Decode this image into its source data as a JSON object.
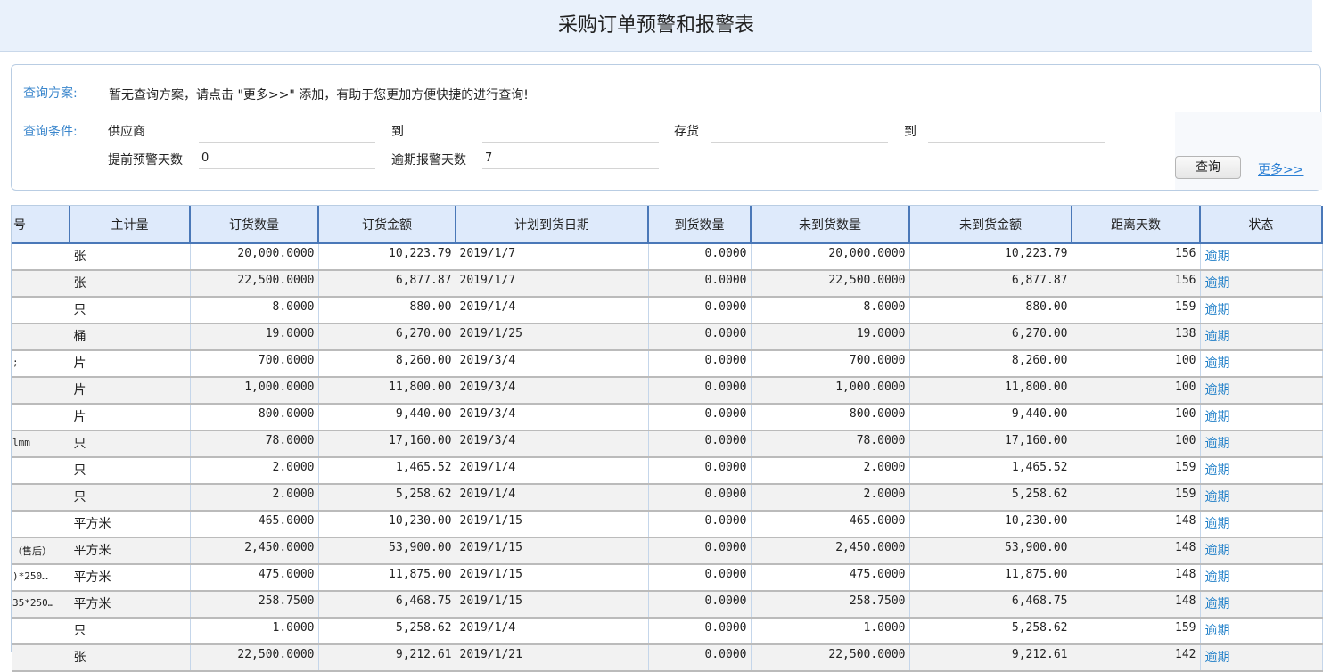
{
  "title": "采购订单预警和报警表",
  "query": {
    "scheme_label": "查询方案:",
    "scheme_text": "暂无查询方案，请点击 \"更多>>\" 添加，有助于您更加方便快捷的进行查询!",
    "cond_label": "查询条件:",
    "supplier_label": "供应商",
    "supplier_value": "",
    "to1_label": "到",
    "to1_value": "",
    "stock_label": "存货",
    "stock_value": "",
    "to2_label": "到",
    "to2_value": "",
    "advance_label": "提前预警天数",
    "advance_value": "0",
    "overdue_label": "逾期报警天数",
    "overdue_value": "7",
    "search_button": "查询",
    "more_link": "更多>>"
  },
  "table": {
    "headers": [
      "号",
      "主计量",
      "订货数量",
      "订货金额",
      "计划到货日期",
      "到货数量",
      "未到货数量",
      "未到货金额",
      "距离天数",
      "状态"
    ],
    "rows": [
      [
        "",
        "张",
        "20,000.0000",
        "10,223.79",
        "2019/1/7",
        "0.0000",
        "20,000.0000",
        "10,223.79",
        "156",
        "逾期"
      ],
      [
        "",
        "张",
        "22,500.0000",
        "6,877.87",
        "2019/1/7",
        "0.0000",
        "22,500.0000",
        "6,877.87",
        "156",
        "逾期"
      ],
      [
        "",
        "只",
        "8.0000",
        "880.00",
        "2019/1/4",
        "0.0000",
        "8.0000",
        "880.00",
        "159",
        "逾期"
      ],
      [
        "",
        "桶",
        "19.0000",
        "6,270.00",
        "2019/1/25",
        "0.0000",
        "19.0000",
        "6,270.00",
        "138",
        "逾期"
      ],
      [
        ";",
        "片",
        "700.0000",
        "8,260.00",
        "2019/3/4",
        "0.0000",
        "700.0000",
        "8,260.00",
        "100",
        "逾期"
      ],
      [
        "",
        "片",
        "1,000.0000",
        "11,800.00",
        "2019/3/4",
        "0.0000",
        "1,000.0000",
        "11,800.00",
        "100",
        "逾期"
      ],
      [
        "",
        "片",
        "800.0000",
        "9,440.00",
        "2019/3/4",
        "0.0000",
        "800.0000",
        "9,440.00",
        "100",
        "逾期"
      ],
      [
        "lmm",
        "只",
        "78.0000",
        "17,160.00",
        "2019/3/4",
        "0.0000",
        "78.0000",
        "17,160.00",
        "100",
        "逾期"
      ],
      [
        "",
        "只",
        "2.0000",
        "1,465.52",
        "2019/1/4",
        "0.0000",
        "2.0000",
        "1,465.52",
        "159",
        "逾期"
      ],
      [
        "",
        "只",
        "2.0000",
        "5,258.62",
        "2019/1/4",
        "0.0000",
        "2.0000",
        "5,258.62",
        "159",
        "逾期"
      ],
      [
        "",
        "平方米",
        "465.0000",
        "10,230.00",
        "2019/1/15",
        "0.0000",
        "465.0000",
        "10,230.00",
        "148",
        "逾期"
      ],
      [
        "（售后）",
        "平方米",
        "2,450.0000",
        "53,900.00",
        "2019/1/15",
        "0.0000",
        "2,450.0000",
        "53,900.00",
        "148",
        "逾期"
      ],
      [
        ")*250…",
        "平方米",
        "475.0000",
        "11,875.00",
        "2019/1/15",
        "0.0000",
        "475.0000",
        "11,875.00",
        "148",
        "逾期"
      ],
      [
        "35*250…",
        "平方米",
        "258.7500",
        "6,468.75",
        "2019/1/15",
        "0.0000",
        "258.7500",
        "6,468.75",
        "148",
        "逾期"
      ],
      [
        "",
        "只",
        "1.0000",
        "5,258.62",
        "2019/1/4",
        "0.0000",
        "1.0000",
        "5,258.62",
        "159",
        "逾期"
      ],
      [
        "",
        "张",
        "22,500.0000",
        "9,212.61",
        "2019/1/21",
        "0.0000",
        "22,500.0000",
        "9,212.61",
        "142",
        "逾期"
      ]
    ]
  }
}
